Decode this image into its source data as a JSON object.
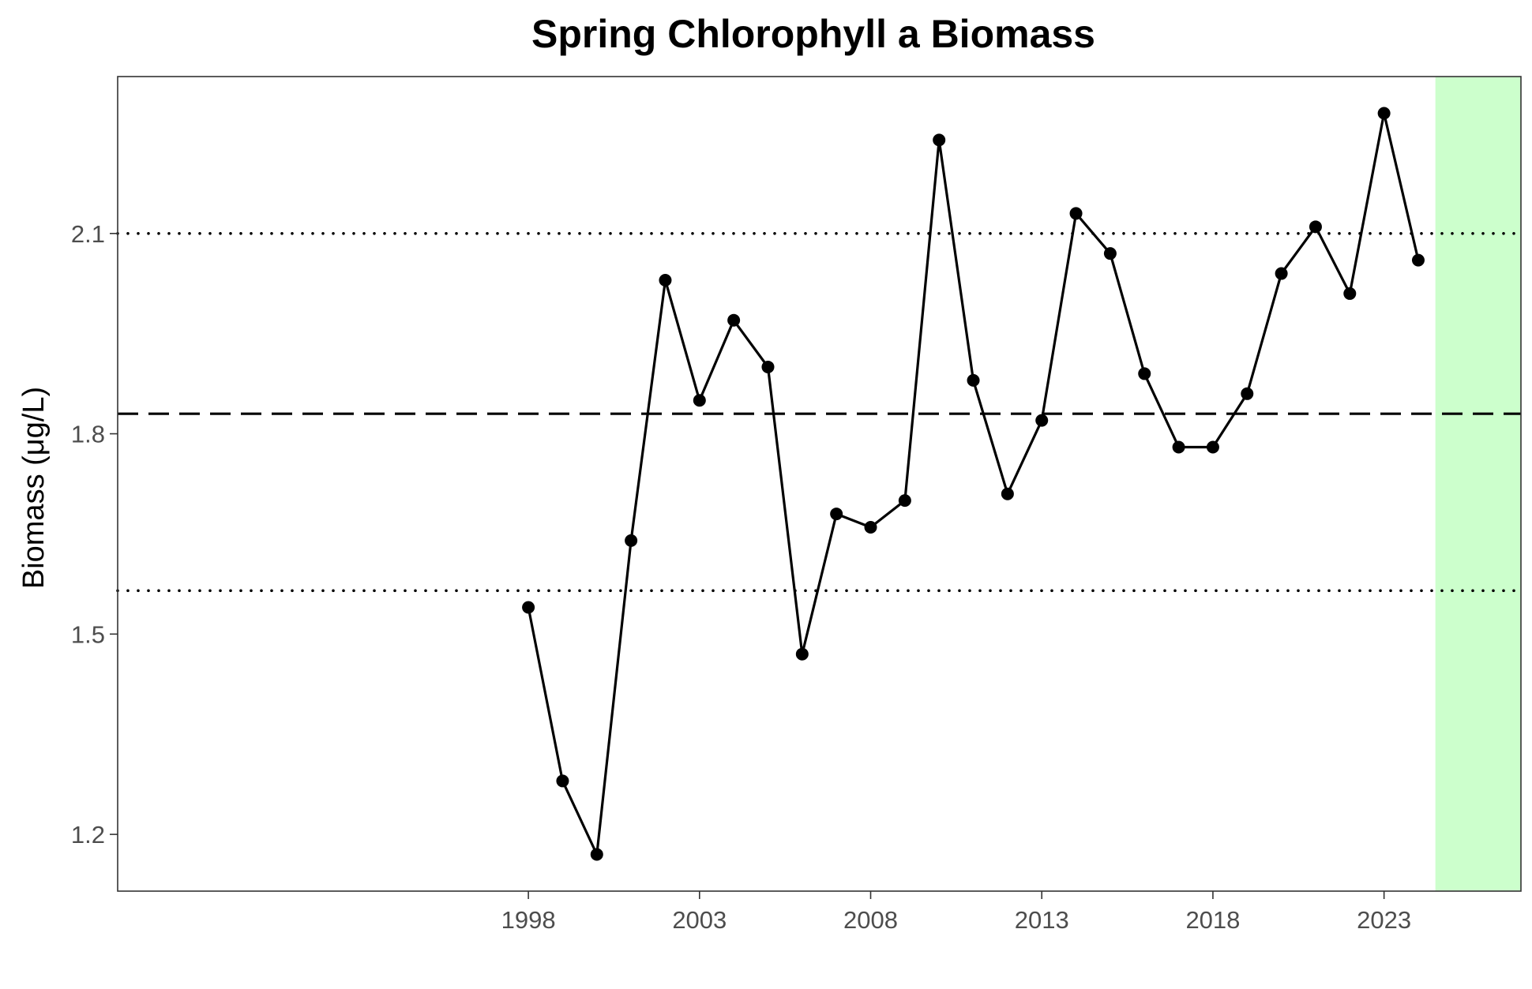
{
  "chart_data": {
    "type": "line",
    "title": "Spring Chlorophyll a Biomass",
    "xlabel": "",
    "ylabel": "Biomass (μg/L)",
    "xlim": [
      1986,
      2027
    ],
    "ylim": [
      1.115,
      2.335
    ],
    "x_ticks": [
      "1998",
      "2003",
      "2008",
      "2013",
      "2018",
      "2023"
    ],
    "y_ticks": [
      "1.2",
      "1.5",
      "1.8",
      "2.1"
    ],
    "grid": false,
    "series": [
      {
        "x": [
          1998,
          1999,
          2000,
          2001,
          2002,
          2003,
          2004,
          2005,
          2006,
          2007,
          2008,
          2009,
          2010,
          2011,
          2012,
          2013,
          2014,
          2015,
          2016,
          2017,
          2018,
          2019,
          2020,
          2021,
          2022,
          2023,
          2024
        ],
        "values": [
          1.54,
          1.28,
          1.17,
          1.64,
          2.03,
          1.85,
          1.97,
          1.9,
          1.47,
          1.68,
          1.66,
          1.7,
          2.24,
          1.88,
          1.71,
          1.82,
          2.13,
          2.07,
          1.89,
          1.78,
          1.78,
          1.86,
          2.04,
          2.11,
          2.01,
          2.28,
          2.06
        ],
        "color": "#000000"
      }
    ],
    "reference_lines": [
      {
        "y": 1.83,
        "style": "dashed"
      },
      {
        "y": 2.1,
        "style": "dotted"
      },
      {
        "y": 1.565,
        "style": "dotted"
      }
    ],
    "shaded_region": {
      "x_start": 2024.5,
      "x_end": 2027,
      "color": "#ccffcc"
    }
  }
}
